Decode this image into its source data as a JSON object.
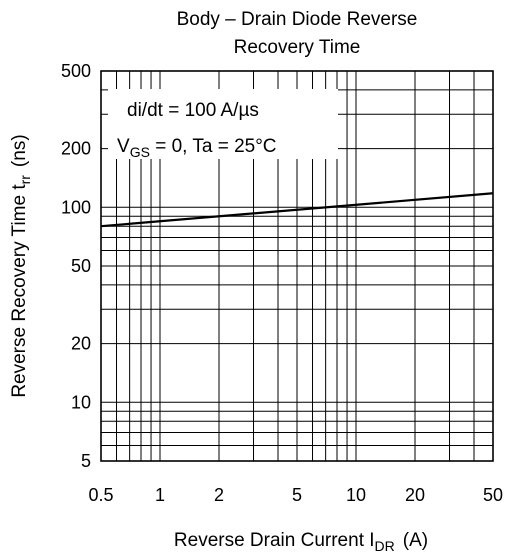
{
  "chart_data": {
    "type": "line",
    "title_line1": "Body – Drain Diode Reverse",
    "title_line2": "Recovery Time",
    "xlabel": "Reverse Drain Current I",
    "xlabel_sub": "DR",
    "xlabel_unit": "(A)",
    "ylabel": "Reverse Recovery Time t",
    "ylabel_sub": "rr",
    "ylabel_unit": "(ns)",
    "x_scale": "log",
    "y_scale": "log",
    "xlim": [
      0.5,
      50
    ],
    "ylim": [
      5,
      500
    ],
    "x_ticks": [
      0.5,
      1,
      2,
      5,
      10,
      20,
      50
    ],
    "x_tick_labels": [
      "0.5",
      "1",
      "2",
      "5",
      "10",
      "20",
      "50"
    ],
    "y_ticks": [
      5,
      10,
      20,
      50,
      100,
      200,
      500
    ],
    "y_tick_labels": [
      "5",
      "10",
      "20",
      "50",
      "100",
      "200",
      "500"
    ],
    "grid": true,
    "annotation_line1": "di/dt = 100 A/µs",
    "annotation_line2_a": "V",
    "annotation_line2_sub": "GS",
    "annotation_line2_b": " = 0, Ta = 25°C",
    "series": [
      {
        "x": [
          0.5,
          50
        ],
        "y": [
          80,
          118
        ]
      }
    ]
  }
}
